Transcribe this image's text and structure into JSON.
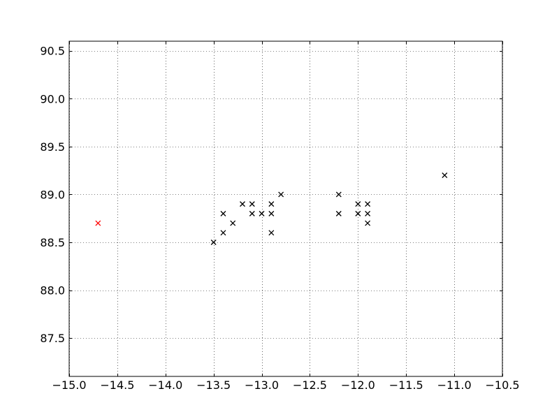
{
  "chart_data": {
    "type": "scatter",
    "title": "",
    "xlabel": "",
    "ylabel": "",
    "xlim": [
      -15.0,
      -10.5
    ],
    "ylim": [
      87.1,
      90.6
    ],
    "x_ticks": [
      -15.0,
      -14.5,
      -14.0,
      -13.5,
      -13.0,
      -12.5,
      -12.0,
      -11.5,
      -11.0,
      -10.5
    ],
    "x_tick_labels": [
      "−15.0",
      "−14.5",
      "−14.0",
      "−13.5",
      "−13.0",
      "−12.5",
      "−12.0",
      "−11.5",
      "−11.0",
      "−10.5"
    ],
    "y_ticks": [
      87.5,
      88.0,
      88.5,
      89.0,
      89.5,
      90.0,
      90.5
    ],
    "y_tick_labels": [
      "87.5",
      "88.0",
      "88.5",
      "89.0",
      "89.5",
      "90.0",
      "90.5"
    ],
    "grid": true,
    "marker": "x",
    "series": [
      {
        "color": "#000000",
        "points": [
          [
            -13.5,
            88.5
          ],
          [
            -13.4,
            88.6
          ],
          [
            -13.4,
            88.8
          ],
          [
            -13.3,
            88.7
          ],
          [
            -13.2,
            88.9
          ],
          [
            -13.1,
            88.9
          ],
          [
            -13.1,
            88.8
          ],
          [
            -13.0,
            88.8
          ],
          [
            -12.9,
            88.9
          ],
          [
            -12.9,
            88.8
          ],
          [
            -12.9,
            88.6
          ],
          [
            -12.8,
            89.0
          ],
          [
            -12.2,
            89.0
          ],
          [
            -12.2,
            88.8
          ],
          [
            -12.0,
            88.9
          ],
          [
            -12.0,
            88.8
          ],
          [
            -11.9,
            88.9
          ],
          [
            -11.9,
            88.8
          ],
          [
            -11.9,
            88.7
          ],
          [
            -11.1,
            89.2
          ]
        ]
      },
      {
        "color": "#ff0000",
        "points": [
          [
            -14.7,
            88.7
          ]
        ]
      }
    ]
  }
}
